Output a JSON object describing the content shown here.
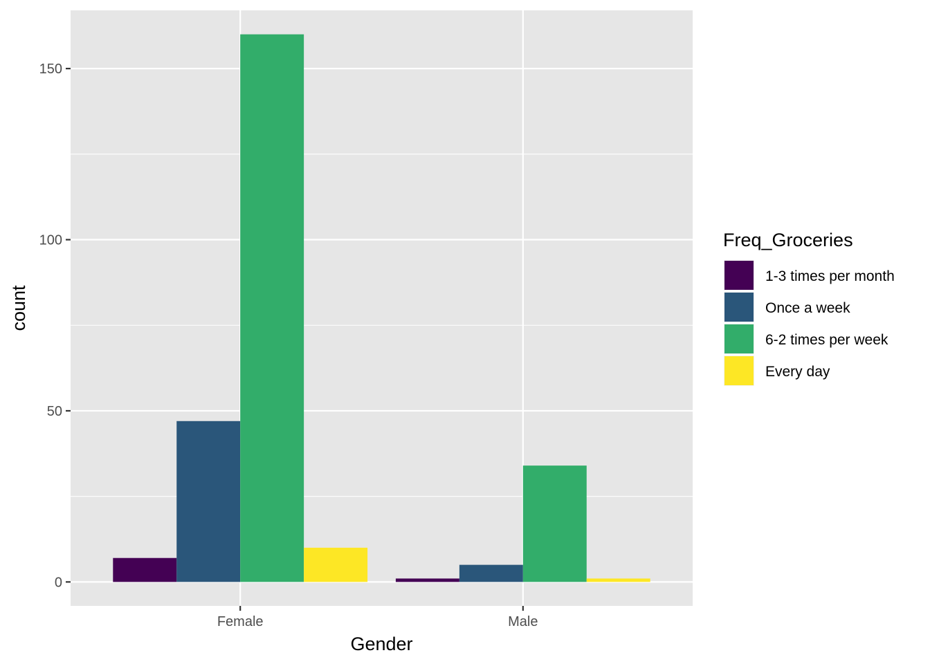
{
  "chart_data": {
    "type": "bar",
    "xlabel": "Gender",
    "ylabel": "count",
    "categories": [
      "Female",
      "Male"
    ],
    "ylim": [
      -7,
      167
    ],
    "yticks": [
      0,
      50,
      100,
      150
    ],
    "yticks_minor": [
      25,
      75,
      125
    ],
    "grid": true,
    "legend": {
      "title": "Freq_Groceries",
      "placement": "right"
    },
    "series": [
      {
        "name": "1-3 times per month",
        "color": "#440154",
        "values": [
          7,
          1
        ]
      },
      {
        "name": "Once a week",
        "color": "#2a567a",
        "values": [
          47,
          5
        ]
      },
      {
        "name": "6-2 times per week",
        "color": "#32ad6a",
        "values": [
          160,
          34
        ]
      },
      {
        "name": "Every day",
        "color": "#fde725",
        "values": [
          10,
          1
        ]
      }
    ],
    "panel_background": "#e6e6e6",
    "grid_color": "#ffffff"
  }
}
